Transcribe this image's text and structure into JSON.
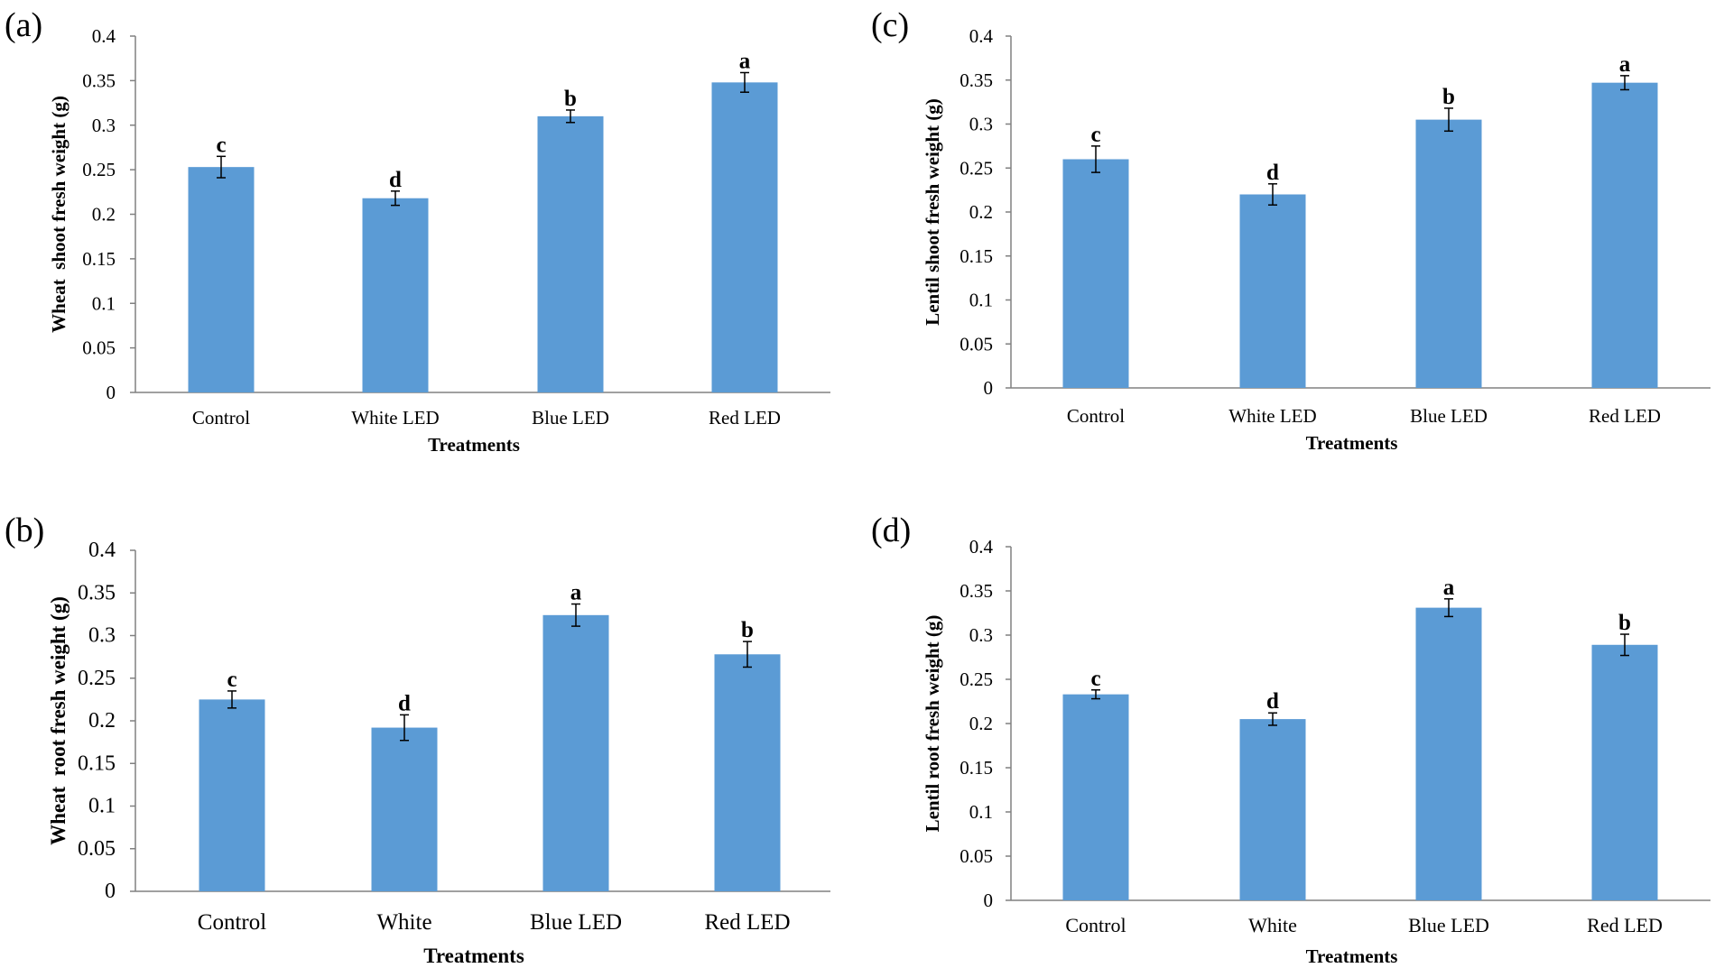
{
  "colors": {
    "bar": "#5B9BD5",
    "axis": "#808080",
    "text": "#000000",
    "errorbar": "#000000"
  },
  "chart_data": [
    {
      "panel": "(a)",
      "type": "bar",
      "categories": [
        "Control",
        "White LED",
        "Blue LED",
        "Red LED"
      ],
      "values": [
        0.253,
        0.218,
        0.31,
        0.348
      ],
      "errors": [
        0.012,
        0.008,
        0.007,
        0.011
      ],
      "letters": [
        "c",
        "d",
        "b",
        "a"
      ],
      "xlabel": "Treatments",
      "ylabel": "Wheat  shoot fresh weight (g)",
      "ylim": [
        0,
        0.4
      ],
      "yticks": [
        "0",
        "0.05",
        "0.1",
        "0.15",
        "0.2",
        "0.25",
        "0.3",
        "0.35",
        "0.4"
      ],
      "grid": false
    },
    {
      "panel": "(b)",
      "type": "bar",
      "categories": [
        "Control",
        "White",
        "Blue LED",
        "Red LED"
      ],
      "values": [
        0.225,
        0.192,
        0.324,
        0.278
      ],
      "errors": [
        0.01,
        0.015,
        0.013,
        0.015
      ],
      "letters": [
        "c",
        "d",
        "a",
        "b"
      ],
      "xlabel": "Treatments",
      "ylabel": "Wheat  root fresh weight (g)",
      "ylim": [
        0,
        0.4
      ],
      "yticks": [
        "0",
        "0.05",
        "0.1",
        "0.15",
        "0.2",
        "0.25",
        "0.3",
        "0.35",
        "0.4"
      ],
      "grid": false
    },
    {
      "panel": "(c)",
      "type": "bar",
      "categories": [
        "Control",
        "White LED",
        "Blue LED",
        "Red LED"
      ],
      "values": [
        0.26,
        0.22,
        0.305,
        0.347
      ],
      "errors": [
        0.015,
        0.012,
        0.013,
        0.008
      ],
      "letters": [
        "c",
        "d",
        "b",
        "a"
      ],
      "xlabel": "Treatments",
      "ylabel": "Lentil shoot fresh weight (g)",
      "ylim": [
        0,
        0.4
      ],
      "yticks": [
        "0",
        "0.05",
        "0.1",
        "0.15",
        "0.2",
        "0.25",
        "0.3",
        "0.35",
        "0.4"
      ],
      "grid": false
    },
    {
      "panel": "(d)",
      "type": "bar",
      "categories": [
        "Control",
        "White",
        "Blue LED",
        "Red LED"
      ],
      "values": [
        0.233,
        0.205,
        0.331,
        0.289
      ],
      "errors": [
        0.005,
        0.007,
        0.01,
        0.012
      ],
      "letters": [
        "c",
        "d",
        "a",
        "b"
      ],
      "xlabel": "Treatments",
      "ylabel": "Lentil root fresh weight (g)",
      "ylim": [
        0,
        0.4
      ],
      "yticks": [
        "0",
        "0.05",
        "0.1",
        "0.15",
        "0.2",
        "0.25",
        "0.3",
        "0.35",
        "0.4"
      ],
      "grid": false
    }
  ]
}
